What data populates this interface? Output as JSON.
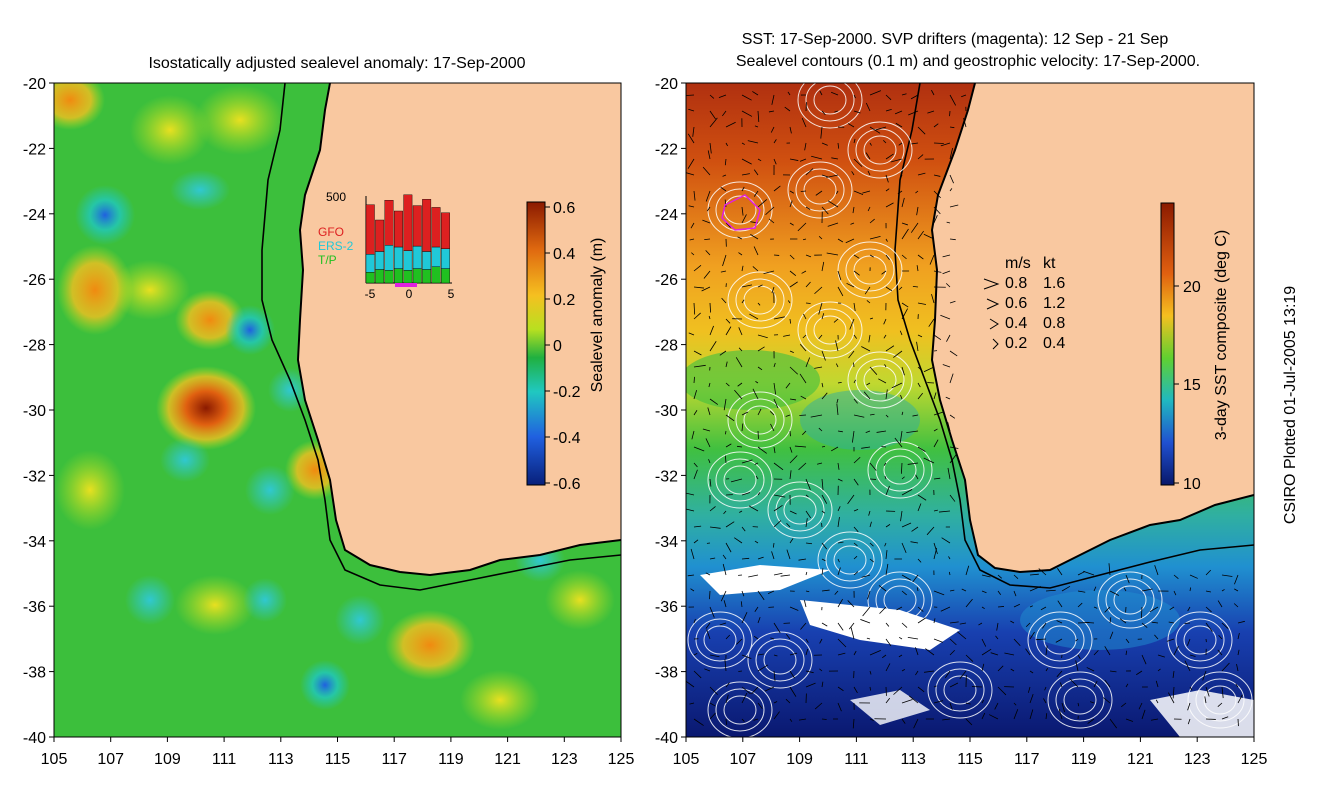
{
  "left_panel": {
    "title": "Isostatically adjusted sealevel anomaly: 17-Sep-2000",
    "colorbar_label": "Sealevel anomaly (m)",
    "colorbar_ticks": [
      "0.6",
      "0.4",
      "0.2",
      "0",
      "-0.2",
      "-0.4",
      "-0.6"
    ],
    "inset": {
      "y_max_label": "500",
      "x_ticks": [
        "-5",
        "0",
        "5"
      ],
      "legend": [
        {
          "label": "GFO",
          "color": "#dd2020"
        },
        {
          "label": "ERS-2",
          "color": "#20c8d8"
        },
        {
          "label": "T/P",
          "color": "#20c020"
        }
      ]
    }
  },
  "right_panel": {
    "title_line1": "SST: 17-Sep-2000. SVP drifters (magenta): 12 Sep - 21 Sep",
    "title_line2": "Sealevel contours (0.1 m) and geostrophic velocity: 17-Sep-2000.",
    "colorbar_label": "3-day SST composite (deg C)",
    "colorbar_ticks": [
      "20",
      "15",
      "10"
    ],
    "speed_legend": {
      "header_ms": "m/s",
      "header_kt": "kt",
      "rows": [
        {
          "ms": "0.8",
          "kt": "1.6"
        },
        {
          "ms": "0.6",
          "kt": "1.2"
        },
        {
          "ms": "0.4",
          "kt": "0.8"
        },
        {
          "ms": "0.2",
          "kt": "0.4"
        }
      ]
    }
  },
  "axes": {
    "x_ticks": [
      "105",
      "107",
      "109",
      "111",
      "113",
      "115",
      "117",
      "119",
      "121",
      "123",
      "125"
    ],
    "y_ticks": [
      "-20",
      "-22",
      "-24",
      "-26",
      "-28",
      "-30",
      "-32",
      "-34",
      "-36",
      "-38",
      "-40"
    ]
  },
  "credit": "CSIRO Plotted 01-Jul-2005 13:19",
  "colors": {
    "land": "#f9c8a0",
    "ocean_base": "#3cbf3c",
    "coast": "#000000"
  }
}
